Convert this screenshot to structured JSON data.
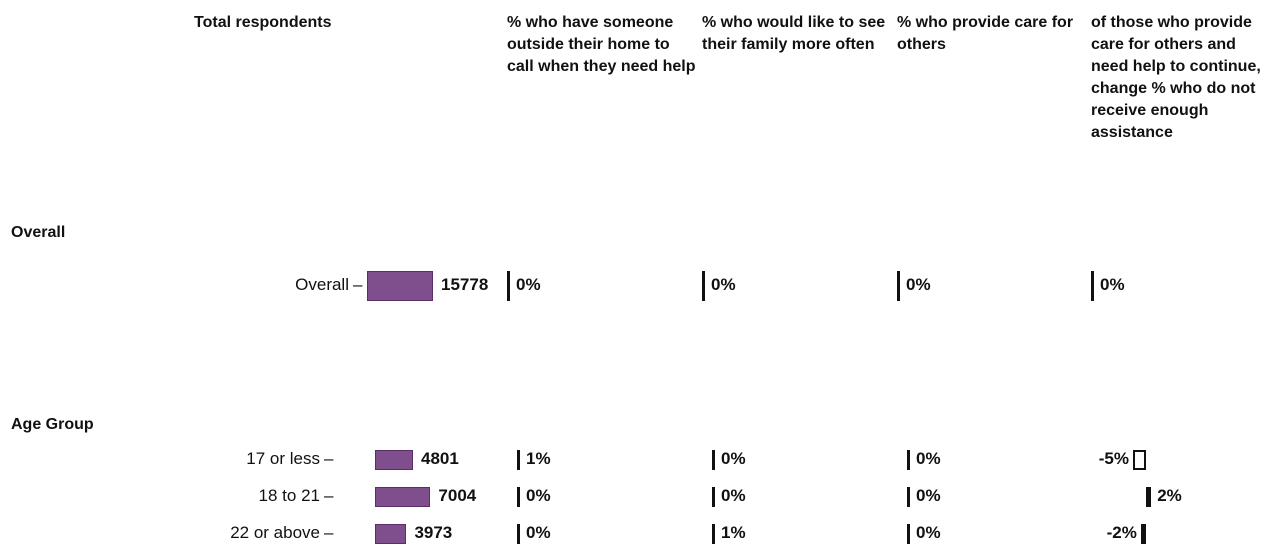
{
  "chart_data": {
    "type": "table",
    "columns": [
      "Total respondents",
      "% who have someone outside their home to call when they need help",
      "% who would like to see their family more often",
      "% who provide care for others",
      "of those who provide care for others and need help to continue, change % who do not receive enough assistance"
    ],
    "sections": [
      {
        "name": "Overall",
        "rows": [
          {
            "label": "Overall",
            "count": 15778,
            "count_text": "15778",
            "values": [
              0,
              0,
              0,
              0
            ],
            "value_text": [
              "0%",
              "0%",
              "0%",
              "0%"
            ]
          }
        ]
      },
      {
        "name": "Age Group",
        "rows": [
          {
            "label": "17 or less",
            "count": 4801,
            "count_text": "4801",
            "values": [
              1,
              0,
              0,
              -5
            ],
            "value_text": [
              "1%",
              "0%",
              "0%",
              "-5%"
            ]
          },
          {
            "label": "18 to 21",
            "count": 7004,
            "count_text": "7004",
            "values": [
              0,
              0,
              0,
              2
            ],
            "value_text": [
              "0%",
              "0%",
              "0%",
              "2%"
            ]
          },
          {
            "label": "22 or above",
            "count": 3973,
            "count_text": "3973",
            "values": [
              0,
              1,
              0,
              -2
            ],
            "value_text": [
              "0%",
              "1%",
              "0%",
              "-2%"
            ]
          }
        ]
      }
    ],
    "bar_color": "#7e4f8c",
    "bar_border_color": "#5b2d6a"
  }
}
